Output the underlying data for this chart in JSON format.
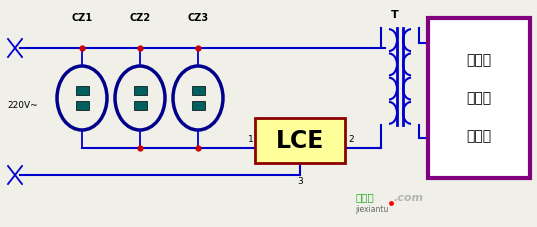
{
  "bg_color": "#f0f0e8",
  "wire_color": "#0000cd",
  "plug_color": "#00008b",
  "plug_fill": "#006060",
  "dot_color": "#cc0000",
  "lce_fill": "#ffff99",
  "lce_border": "#8b0000",
  "lce_text": "LCE",
  "box_border": "#800080",
  "box_fill": "#ffffff",
  "box_text": [
    "共用天",
    "线放大",
    "器电源"
  ],
  "transformer_color": "#0000cd",
  "label_220": "220V~",
  "label_cz": [
    "CZ1",
    "CZ2",
    "CZ3"
  ],
  "label_T": "T",
  "label_1": "1",
  "label_2": "2",
  "label_3": "3",
  "wm_text": "接线图",
  "wm_com": ".com",
  "wm_pinyin": "jiexiantu"
}
